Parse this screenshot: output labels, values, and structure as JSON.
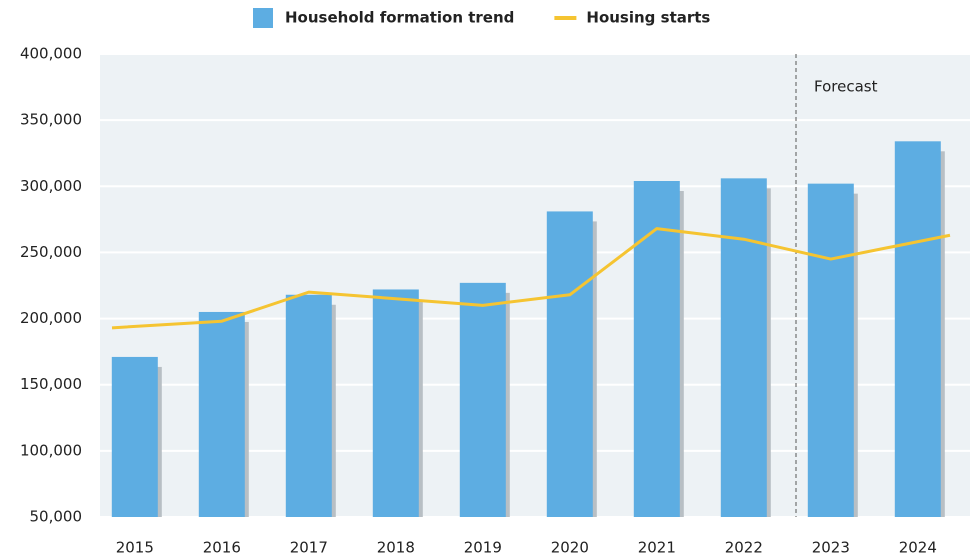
{
  "chart_data": {
    "type": "bar_line",
    "categories": [
      "2015",
      "2016",
      "2017",
      "2018",
      "2019",
      "2020",
      "2021",
      "2022",
      "2023",
      "2024"
    ],
    "series": [
      {
        "name": "Household formation trend",
        "type": "bar",
        "color": "#5dade2",
        "values": [
          171000,
          205000,
          218000,
          222000,
          227000,
          281000,
          304000,
          306000,
          302000,
          334000
        ]
      },
      {
        "name": "Housing starts",
        "type": "line",
        "color": "#f5c431",
        "values": [
          193000,
          198000,
          220000,
          215000,
          210000,
          218000,
          268000,
          260000,
          245000,
          263000
        ]
      }
    ],
    "ylim": [
      50000,
      400000
    ],
    "yticks": [
      {
        "value": 50000,
        "label": "50,000"
      },
      {
        "value": 100000,
        "label": "100,000"
      },
      {
        "value": 150000,
        "label": "150,000"
      },
      {
        "value": 200000,
        "label": "200,000"
      },
      {
        "value": 250000,
        "label": "250,000"
      },
      {
        "value": 300000,
        "label": "300,000"
      },
      {
        "value": 350000,
        "label": "350,000"
      },
      {
        "value": 400000,
        "label": "400,000"
      }
    ],
    "grid": true,
    "legend": "top",
    "annotation": {
      "text": "Forecast",
      "x": "2023"
    }
  }
}
